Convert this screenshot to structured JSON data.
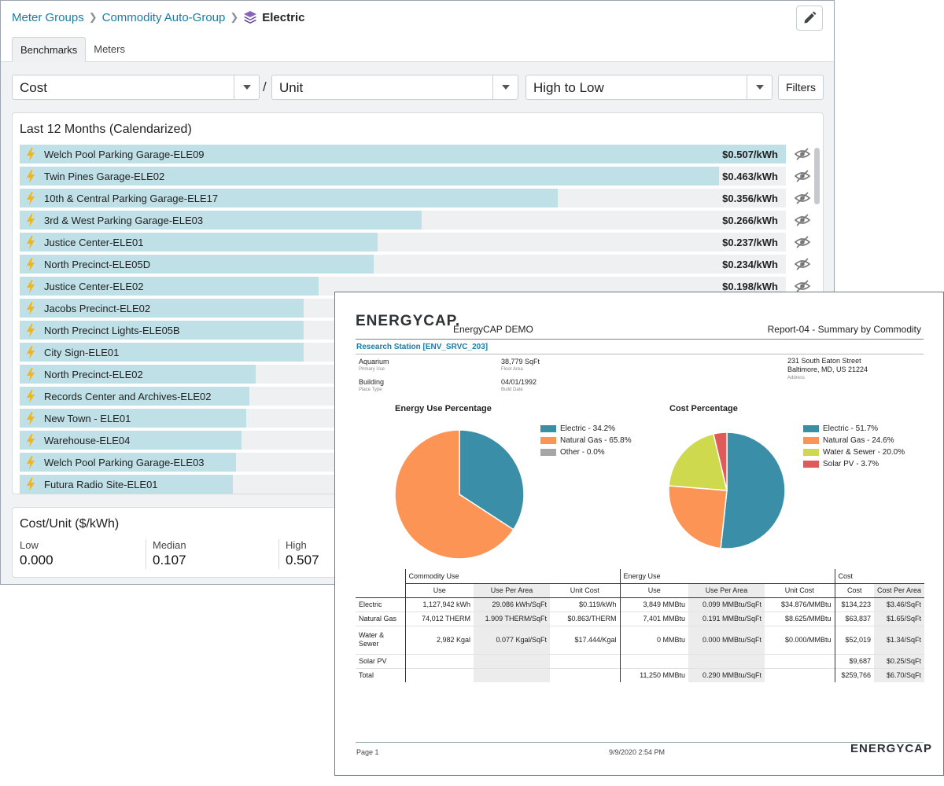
{
  "breadcrumb": {
    "items": [
      "Meter Groups",
      "Commodity Auto-Group"
    ],
    "current": "Electric"
  },
  "tabs": [
    "Benchmarks",
    "Meters"
  ],
  "controls": {
    "metric": "Cost",
    "separator": "/",
    "per": "Unit",
    "sort": "High to Low",
    "filters": "Filters"
  },
  "benchmark": {
    "title": "Last 12 Months (Calendarized)",
    "max": 0.507,
    "rows": [
      {
        "name": "Welch Pool Parking Garage-ELE09",
        "value": 0.507,
        "label": "$0.507/kWh"
      },
      {
        "name": "Twin Pines Garage-ELE02",
        "value": 0.463,
        "label": "$0.463/kWh"
      },
      {
        "name": "10th & Central Parking Garage-ELE17",
        "value": 0.356,
        "label": "$0.356/kWh"
      },
      {
        "name": "3rd & West Parking Garage-ELE03",
        "value": 0.266,
        "label": "$0.266/kWh"
      },
      {
        "name": "Justice Center-ELE01",
        "value": 0.237,
        "label": "$0.237/kWh"
      },
      {
        "name": "North Precinct-ELE05D",
        "value": 0.234,
        "label": "$0.234/kWh"
      },
      {
        "name": "Justice Center-ELE02",
        "value": 0.198,
        "label": "$0.198/kWh"
      },
      {
        "name": "Jacobs Precinct-ELE02",
        "value": 0.188
      },
      {
        "name": "North Precinct Lights-ELE05B",
        "value": 0.188
      },
      {
        "name": "City Sign-ELE01",
        "value": 0.188
      },
      {
        "name": "North Precinct-ELE02",
        "value": 0.156
      },
      {
        "name": "Records Center and Archives-ELE02",
        "value": 0.152
      },
      {
        "name": "New Town - ELE01",
        "value": 0.15
      },
      {
        "name": "Warehouse-ELE04",
        "value": 0.147
      },
      {
        "name": "Welch Pool Parking Garage-ELE03",
        "value": 0.143
      },
      {
        "name": "Futura Radio Site-ELE01",
        "value": 0.141
      }
    ]
  },
  "cost_unit": {
    "title": "Cost/Unit ($/kWh)",
    "stats": [
      {
        "label": "Low",
        "value": "0.000"
      },
      {
        "label": "Median",
        "value": "0.107"
      },
      {
        "label": "High",
        "value": "0.507"
      }
    ]
  },
  "report": {
    "logo": "ENERGYCAP.",
    "company": "EnergyCAP DEMO",
    "title": "Report-04 - Summary by Commodity",
    "site": "Research Station [ENV_SRVC_203]",
    "info": {
      "primary_use": "Aquarium",
      "primary_use_label": "Primary Use",
      "floor_area": "38,779 SqFt",
      "floor_area_label": "Floor Area",
      "place_type": "Building",
      "place_type_label": "Place Type",
      "build_date": "04/01/1992",
      "build_date_label": "Build Date",
      "address1": "231 South Eaton Street",
      "address2": "Baltimore, MD, US 21224",
      "address_label": "Address"
    },
    "energy_chart": {
      "title": "Energy Use Percentage",
      "slices": [
        {
          "label": "Electric - 34.2%",
          "value": 34.2,
          "color": "#3a8ea8"
        },
        {
          "label": "Natural Gas - 65.8%",
          "value": 65.8,
          "color": "#fb9455"
        },
        {
          "label": "Other - 0.0%",
          "value": 0.0,
          "color": "#a6a6a6"
        }
      ]
    },
    "cost_chart": {
      "title": "Cost Percentage",
      "slices": [
        {
          "label": "Electric - 51.7%",
          "value": 51.7,
          "color": "#3a8ea8"
        },
        {
          "label": "Natural Gas - 24.6%",
          "value": 24.6,
          "color": "#fb9455"
        },
        {
          "label": "Water & Sewer - 20.0%",
          "value": 20.0,
          "color": "#cfd94e"
        },
        {
          "label": "Solar PV - 3.7%",
          "value": 3.7,
          "color": "#e05a5a"
        }
      ]
    },
    "table": {
      "groups": [
        "Commodity Use",
        "Energy Use",
        "Cost"
      ],
      "columns": [
        "Use",
        "Use Per Area",
        "Unit Cost",
        "Use",
        "Use Per Area",
        "Unit Cost",
        "Cost",
        "Cost Per Area"
      ],
      "rows": [
        [
          "Electric",
          "1,127,942  kWh",
          "29.086  kWh/SqFt",
          "$0.119/kWh",
          "3,849  MMBtu",
          "0.099  MMBtu/SqFt",
          "$34.876/MMBtu",
          "$134,223",
          "$3.46/SqFt"
        ],
        [
          "Natural Gas",
          "74,012  THERM",
          "1.909  THERM/SqFt",
          "$0.863/THERM",
          "7,401  MMBtu",
          "0.191  MMBtu/SqFt",
          "$8.625/MMBtu",
          "$63,837",
          "$1.65/SqFt"
        ],
        [
          "Water & Sewer",
          "2,982  Kgal",
          "0.077  Kgal/SqFt",
          "$17.444/Kgal",
          "0  MMBtu",
          "0.000  MMBtu/SqFt",
          "$0.000/MMBtu",
          "$52,019",
          "$1.34/SqFt"
        ],
        [
          "Solar PV",
          "",
          "",
          "",
          "",
          "",
          "",
          "$9,687",
          "$0.25/SqFt"
        ]
      ],
      "total": [
        "Total",
        "",
        "",
        "",
        "11,250  MMBtu",
        "0.290  MMBtu/SqFt",
        "",
        "$259,766",
        "$6.70/SqFt"
      ]
    },
    "footer": {
      "page": "Page 1",
      "date": "9/9/2020 2:54 PM",
      "logo": "ENERGYCAP"
    }
  }
}
